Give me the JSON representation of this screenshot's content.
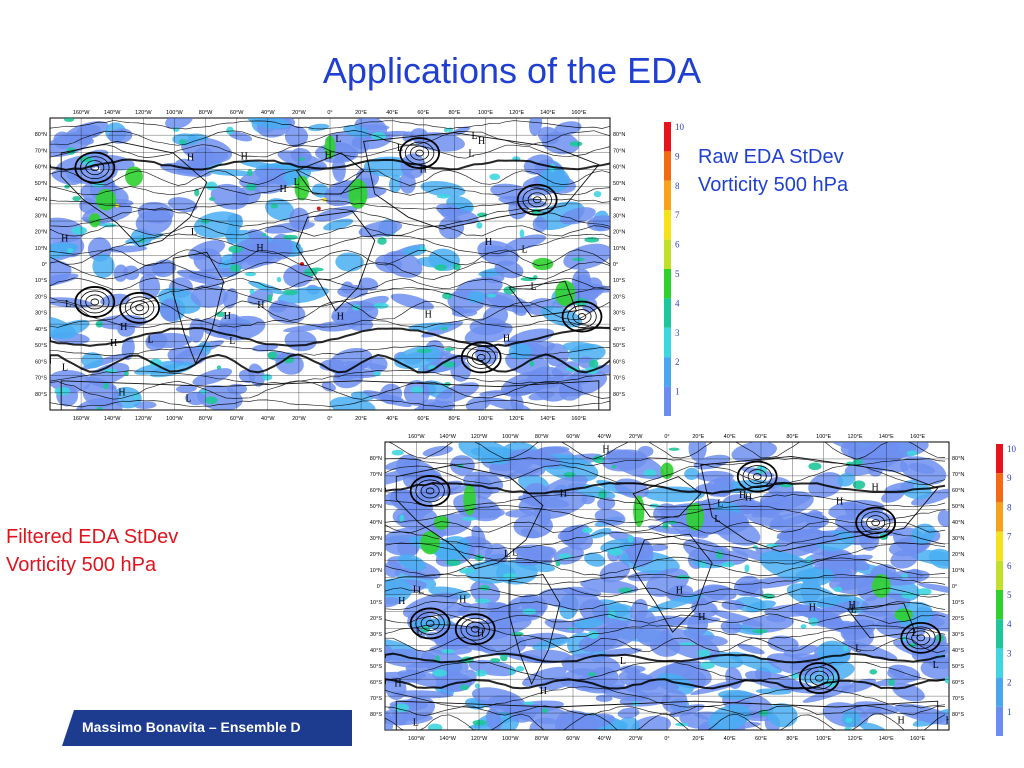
{
  "slide": {
    "title": "Applications of the EDA",
    "footer_text": "Massimo Bonavita –  Ensemble D",
    "colors": {
      "title": "#1f3fd0",
      "footer": "#1d3c8f",
      "red_caption": "#e0141e",
      "blue_caption": "#1f3fd0"
    }
  },
  "panels": [
    {
      "id": "raw",
      "caption_lines": [
        "Raw EDA StDev",
        "Vorticity  500 hPa"
      ],
      "caption_color": "#1f3fd0",
      "lon_labels": [
        "160°W",
        "140°W",
        "120°W",
        "100°W",
        "80°W",
        "60°W",
        "40°W",
        "20°W",
        "0°",
        "20°E",
        "40°E",
        "60°E",
        "80°E",
        "100°E",
        "120°E",
        "140°E",
        "160°E"
      ],
      "lat_labels": [
        "80°N",
        "70°N",
        "60°N",
        "50°N",
        "40°N",
        "30°N",
        "20°N",
        "10°N",
        "0°",
        "10°S",
        "20°S",
        "30°S",
        "40°S",
        "50°S",
        "60°S",
        "70°S",
        "80°S"
      ],
      "colorbar_labels": [
        "10",
        "9",
        "8",
        "7",
        "6",
        "5",
        "4",
        "3",
        "2",
        "1"
      ]
    },
    {
      "id": "filtered",
      "caption_lines": [
        "Filtered EDA StDev",
        "Vorticity 500 hPa"
      ],
      "caption_color": "#e0141e",
      "lon_labels": [
        "160°W",
        "140°W",
        "120°W",
        "100°W",
        "80°W",
        "60°W",
        "40°W",
        "20°W",
        "0°",
        "20°E",
        "40°E",
        "60°E",
        "80°E",
        "100°E",
        "120°E",
        "140°E",
        "160°E"
      ],
      "lat_labels": [
        "80°N",
        "70°N",
        "60°N",
        "50°N",
        "40°N",
        "30°N",
        "20°N",
        "10°N",
        "0°",
        "10°S",
        "20°S",
        "30°S",
        "40°S",
        "50°S",
        "60°S",
        "70°S",
        "80°S"
      ],
      "colorbar_labels": [
        "10",
        "9",
        "8",
        "7",
        "6",
        "5",
        "4",
        "3",
        "2",
        "1"
      ]
    }
  ],
  "colorbar_colors": [
    "#e8121a",
    "#f26a12",
    "#f7a21a",
    "#f4e21c",
    "#c2e02a",
    "#2fd12f",
    "#1ec79a",
    "#3ed6e0",
    "#4aa6ee",
    "#6b8cf0"
  ],
  "pressure_markers": [
    "H",
    "L",
    "H",
    "L",
    "H",
    "H",
    "L",
    "H",
    "L",
    "H",
    "L",
    "H",
    "H",
    "L",
    "H",
    "L",
    "H",
    "L",
    "H",
    "H",
    "L",
    "L",
    "H",
    "L",
    "H",
    "H",
    "L",
    "H",
    "L",
    "H"
  ]
}
